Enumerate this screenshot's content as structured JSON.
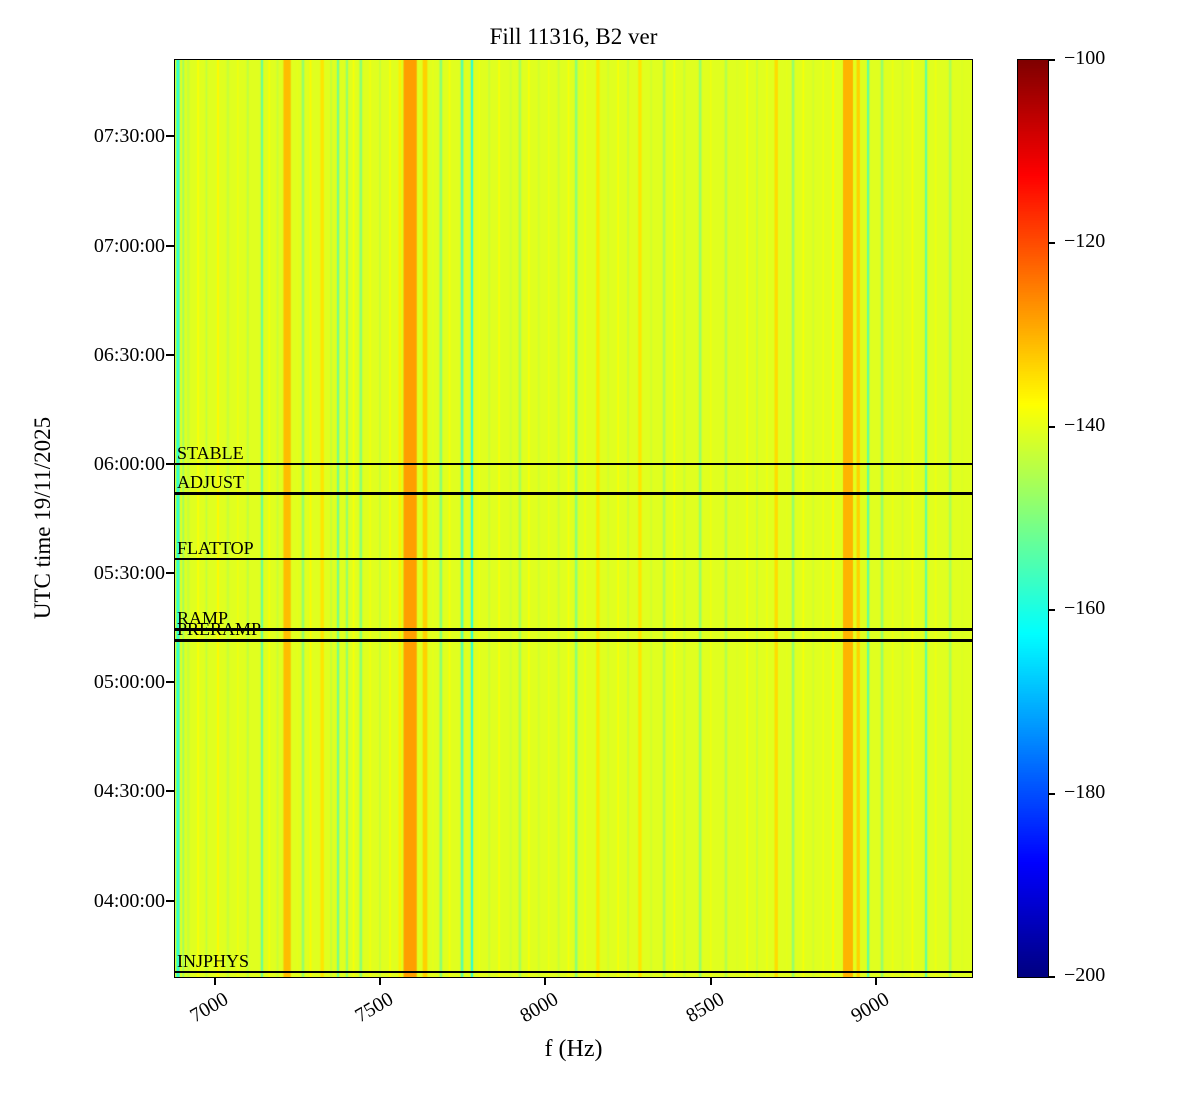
{
  "chart_data": {
    "type": "heatmap",
    "title": "Fill 11316, B2 ver",
    "xlabel": "f (Hz)",
    "ylabel": "UTC time 19/11/2025",
    "x_axis": {
      "min": 6880,
      "max": 9290,
      "ticks": [
        7000,
        7500,
        8000,
        8500,
        9000
      ]
    },
    "y_axis": {
      "top": "07:51:00",
      "bottom": "03:39:00",
      "ticks": [
        "07:30:00",
        "07:00:00",
        "06:30:00",
        "06:00:00",
        "05:30:00",
        "05:00:00",
        "04:30:00",
        "04:00:00"
      ]
    },
    "colorbar": {
      "min": -200,
      "max": -100,
      "ticks": [
        -100,
        -120,
        -140,
        -160,
        -180,
        -200
      ],
      "colormap": "jet"
    },
    "base_value": -140.5,
    "stripes": [
      [
        6889,
        10,
        -158
      ],
      [
        6905,
        6,
        -147
      ],
      [
        6920,
        8,
        -143
      ],
      [
        6950,
        6,
        -138
      ],
      [
        6975,
        5,
        -144
      ],
      [
        7010,
        6,
        -137
      ],
      [
        7040,
        8,
        -143
      ],
      [
        7070,
        5,
        -139
      ],
      [
        7100,
        6,
        -144
      ],
      [
        7143,
        7,
        -152
      ],
      [
        7165,
        5,
        -138
      ],
      [
        7190,
        6,
        -143
      ],
      [
        7219,
        22,
        -131
      ],
      [
        7250,
        5,
        -140
      ],
      [
        7267,
        8,
        -148
      ],
      [
        7290,
        5,
        -137
      ],
      [
        7325,
        10,
        -135
      ],
      [
        7352,
        6,
        -143
      ],
      [
        7373,
        7,
        -151
      ],
      [
        7400,
        7,
        -148
      ],
      [
        7420,
        5,
        -138
      ],
      [
        7442,
        8,
        -149
      ],
      [
        7470,
        6,
        -139
      ],
      [
        7500,
        6,
        -143
      ],
      [
        7530,
        5,
        -138
      ],
      [
        7560,
        8,
        -136
      ],
      [
        7591,
        40,
        -128
      ],
      [
        7636,
        14,
        -133
      ],
      [
        7660,
        6,
        -140
      ],
      [
        7684,
        8,
        -149
      ],
      [
        7710,
        5,
        -138
      ],
      [
        7748,
        8,
        -154
      ],
      [
        7778,
        7,
        -158
      ],
      [
        7800,
        5,
        -139
      ],
      [
        7830,
        6,
        -143
      ],
      [
        7860,
        5,
        -138
      ],
      [
        7895,
        6,
        -142
      ],
      [
        7923,
        8,
        -146
      ],
      [
        7950,
        5,
        -138
      ],
      [
        7980,
        6,
        -142
      ],
      [
        8010,
        5,
        -139
      ],
      [
        8040,
        6,
        -143
      ],
      [
        8070,
        5,
        -138
      ],
      [
        8093,
        8,
        -149
      ],
      [
        8120,
        5,
        -139
      ],
      [
        8159,
        10,
        -135
      ],
      [
        8190,
        6,
        -142
      ],
      [
        8220,
        5,
        -138
      ],
      [
        8250,
        6,
        -143
      ],
      [
        8286,
        10,
        -135
      ],
      [
        8320,
        6,
        -142
      ],
      [
        8359,
        8,
        -146
      ],
      [
        8390,
        5,
        -138
      ],
      [
        8420,
        6,
        -143
      ],
      [
        8468,
        8,
        -148
      ],
      [
        8500,
        5,
        -139
      ],
      [
        8546,
        8,
        -145
      ],
      [
        8580,
        6,
        -141
      ],
      [
        8610,
        5,
        -138
      ],
      [
        8640,
        6,
        -143
      ],
      [
        8670,
        5,
        -139
      ],
      [
        8698,
        10,
        -134
      ],
      [
        8730,
        5,
        -140
      ],
      [
        8749,
        8,
        -148
      ],
      [
        8780,
        5,
        -138
      ],
      [
        8810,
        6,
        -142
      ],
      [
        8840,
        5,
        -139
      ],
      [
        8870,
        6,
        -137
      ],
      [
        8915,
        30,
        -130
      ],
      [
        8946,
        10,
        -133
      ],
      [
        8976,
        7,
        -153
      ],
      [
        9018,
        8,
        -148
      ],
      [
        9050,
        5,
        -139
      ],
      [
        9080,
        6,
        -142
      ],
      [
        9110,
        5,
        -138
      ],
      [
        9151,
        7,
        -153
      ],
      [
        9180,
        5,
        -139
      ],
      [
        9224,
        8,
        -146
      ],
      [
        9260,
        6,
        -141
      ]
    ],
    "beam_modes": [
      {
        "label": "STABLE",
        "time": "06:00:00"
      },
      {
        "label": "ADJUST",
        "time": "05:52:00"
      },
      {
        "label": "FLATTOP",
        "time": "05:34:00"
      },
      {
        "label": "RAMP",
        "time": "05:14:30"
      },
      {
        "label": "PRERAMP",
        "time": "05:11:30"
      },
      {
        "label": "INJPHYS",
        "time": "03:40:30"
      }
    ]
  }
}
